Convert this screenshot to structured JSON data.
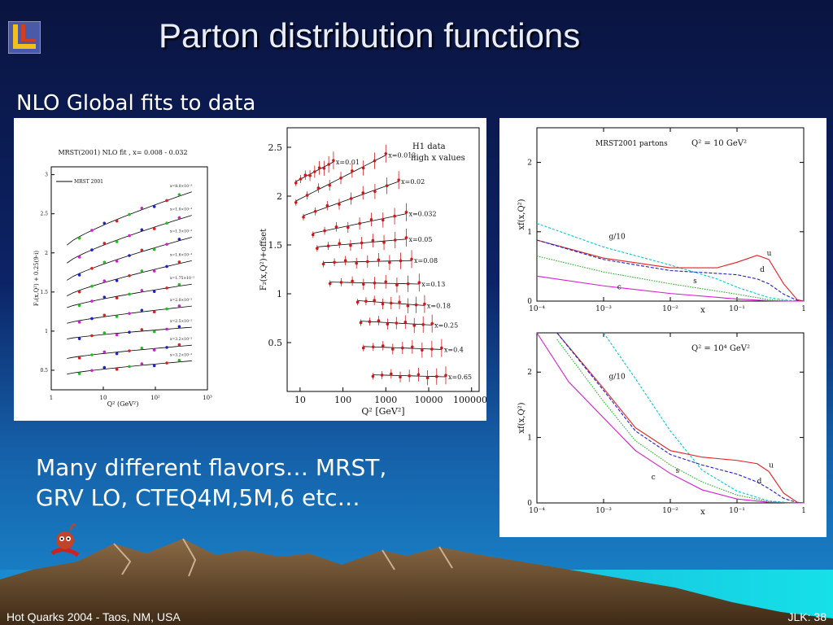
{
  "slide": {
    "title": "Parton distribution functions",
    "subtitle": "NLO Global fits to data",
    "body_lines": [
      "Many different flavors… MRST,",
      "GRV LO, CTEQ4M,5M,6 etc…"
    ],
    "footer_left": "Hot Quarks 2004 - Taos, NM, USA",
    "footer_right": "JLK: 38",
    "colors": {
      "title": "#e8ecff",
      "background_top": "#0a1440",
      "background_bottom": "#1a8ad0"
    },
    "icons": {
      "logo": "lab-logo-icon",
      "mascot": "mascot-icon"
    }
  },
  "chart_data": [
    {
      "type": "scatter",
      "title": "MRST(2001) NLO fit , x= 0.008 - 0.032",
      "xlabel": "Q² (GeV²)",
      "ylabel": "F₂(x,Q²) + 0.25(9-i)",
      "xscale": "log",
      "xlim": [
        1,
        1000
      ],
      "ylim": [
        0.25,
        3.1
      ],
      "x_ticks": [
        "1",
        "10",
        "10²",
        "10³"
      ],
      "y_ticks": [
        "0.5",
        "1",
        "1.5",
        "2",
        "2.5",
        "3"
      ],
      "legend": "MRST 2001",
      "series": [
        {
          "name": "x=8.0×10⁻³",
          "offset_y": [
            2.1,
            2.78
          ]
        },
        {
          "name": "x=1.0×10⁻²",
          "offset_y": [
            1.87,
            2.48
          ]
        },
        {
          "name": "x=1.3×10⁻²",
          "offset_y": [
            1.65,
            2.2
          ]
        },
        {
          "name": "x=1.6×10⁻²",
          "offset_y": [
            1.45,
            1.9
          ]
        },
        {
          "name": "x=1.75×10⁻²",
          "offset_y": [
            1.3,
            1.6
          ]
        },
        {
          "name": "x=2.0×10⁻²",
          "offset_y": [
            1.1,
            1.32
          ]
        },
        {
          "name": "x=2.5×10⁻²",
          "offset_y": [
            0.9,
            1.05
          ]
        },
        {
          "name": "x=3.2×10⁻²",
          "offset_y": [
            0.65,
            0.82
          ]
        },
        {
          "name": "x=3.2×10⁻²",
          "offset_y": [
            0.45,
            0.62
          ]
        }
      ]
    },
    {
      "type": "scatter",
      "title": "H1 data",
      "subtitle": "high x values",
      "xlabel": "Q² [GeV²]",
      "ylabel": "F₂(x,Q²)+offset",
      "xscale": "log",
      "xlim": [
        5,
        150000
      ],
      "ylim": [
        0,
        2.7
      ],
      "x_ticks": [
        "10",
        "100",
        "1000",
        "10000",
        "100000."
      ],
      "y_ticks": [
        "0.5",
        "1",
        "1.5",
        "2",
        "2.5"
      ],
      "series": [
        {
          "name": "x=0.01",
          "q2_range": [
            8,
            60
          ],
          "y_range": [
            2.15,
            2.35
          ]
        },
        {
          "name": "x=0.013",
          "q2_range": [
            8,
            1000
          ],
          "y_range": [
            1.95,
            2.42
          ]
        },
        {
          "name": "x=0.02",
          "q2_range": [
            12,
            2000
          ],
          "y_range": [
            1.8,
            2.15
          ]
        },
        {
          "name": "x=0.032",
          "q2_range": [
            20,
            3000
          ],
          "y_range": [
            1.62,
            1.82
          ]
        },
        {
          "name": "x=0.05",
          "q2_range": [
            25,
            3000
          ],
          "y_range": [
            1.48,
            1.56
          ]
        },
        {
          "name": "x=0.08",
          "q2_range": [
            35,
            4000
          ],
          "y_range": [
            1.32,
            1.34
          ]
        },
        {
          "name": "x=0.13",
          "q2_range": [
            50,
            6000
          ],
          "y_range": [
            1.12,
            1.1
          ]
        },
        {
          "name": "x=0.18",
          "q2_range": [
            220,
            8000
          ],
          "y_range": [
            0.93,
            0.88
          ]
        },
        {
          "name": "x=0.25",
          "q2_range": [
            260,
            12000
          ],
          "y_range": [
            0.72,
            0.68
          ]
        },
        {
          "name": "x=0.4",
          "q2_range": [
            300,
            20000
          ],
          "y_range": [
            0.46,
            0.43
          ]
        },
        {
          "name": "x=0.65",
          "q2_range": [
            500,
            25000
          ],
          "y_range": [
            0.17,
            0.15
          ]
        }
      ]
    },
    {
      "type": "line",
      "title": "MRST2001 partons",
      "annotation": "Q² = 10 GeV²",
      "xlabel": "x",
      "ylabel": "xf(x,Q²)",
      "xscale": "log",
      "xlim": [
        0.0001,
        1
      ],
      "ylim": [
        0,
        2.5
      ],
      "x_ticks": [
        "10⁻⁴",
        "10⁻³",
        "10⁻²",
        "10⁻¹",
        "1"
      ],
      "y_ticks": [
        "0",
        "1",
        "2"
      ],
      "series": [
        {
          "name": "g/10",
          "color": "#00c8d8",
          "x": [
            0.0001,
            0.001,
            0.01,
            0.05,
            0.1,
            0.3,
            0.6,
            1
          ],
          "y": [
            1.12,
            0.78,
            0.52,
            0.32,
            0.2,
            0.05,
            0.01,
            0
          ]
        },
        {
          "name": "u",
          "color": "#e02020",
          "x": [
            0.0001,
            0.001,
            0.01,
            0.05,
            0.1,
            0.2,
            0.3,
            0.5,
            0.8,
            1
          ],
          "y": [
            0.88,
            0.62,
            0.48,
            0.48,
            0.56,
            0.66,
            0.6,
            0.25,
            0.02,
            0
          ]
        },
        {
          "name": "d",
          "color": "#2020c8",
          "x": [
            0.0001,
            0.001,
            0.01,
            0.05,
            0.1,
            0.2,
            0.3,
            0.5,
            0.8,
            1
          ],
          "y": [
            0.88,
            0.6,
            0.44,
            0.4,
            0.38,
            0.32,
            0.25,
            0.1,
            0.01,
            0
          ]
        },
        {
          "name": "s",
          "color": "#20b020",
          "x": [
            0.0001,
            0.001,
            0.01,
            0.1,
            0.3,
            0.6,
            1
          ],
          "y": [
            0.65,
            0.42,
            0.25,
            0.1,
            0.02,
            0.0,
            0
          ]
        },
        {
          "name": "c",
          "color": "#d020d0",
          "x": [
            0.0001,
            0.001,
            0.01,
            0.1,
            0.3,
            0.6,
            1
          ],
          "y": [
            0.36,
            0.22,
            0.11,
            0.03,
            0.005,
            0,
            0
          ]
        }
      ]
    },
    {
      "type": "line",
      "annotation": "Q² = 10⁴ GeV²",
      "xlabel": "x",
      "ylabel": "xf(x,Q²)",
      "xscale": "log",
      "xlim": [
        0.0001,
        1
      ],
      "ylim": [
        0,
        2.6
      ],
      "x_ticks": [
        "10⁻⁴",
        "10⁻³",
        "10⁻²",
        "10⁻¹",
        "1"
      ],
      "y_ticks": [
        "0",
        "1",
        "2"
      ],
      "series": [
        {
          "name": "g/10",
          "color": "#00c8d8",
          "x": [
            0.001,
            0.003,
            0.01,
            0.03,
            0.1,
            0.3,
            0.6,
            1
          ],
          "y": [
            2.6,
            1.9,
            1.1,
            0.5,
            0.18,
            0.03,
            0.005,
            0
          ]
        },
        {
          "name": "u",
          "color": "#e02020",
          "x": [
            0.0002,
            0.001,
            0.003,
            0.01,
            0.03,
            0.1,
            0.2,
            0.3,
            0.5,
            0.8,
            1
          ],
          "y": [
            2.6,
            1.75,
            1.15,
            0.8,
            0.7,
            0.65,
            0.6,
            0.48,
            0.15,
            0.01,
            0
          ]
        },
        {
          "name": "d",
          "color": "#2020c8",
          "x": [
            0.0002,
            0.001,
            0.003,
            0.01,
            0.03,
            0.1,
            0.2,
            0.3,
            0.5,
            0.8,
            1
          ],
          "y": [
            2.6,
            1.72,
            1.1,
            0.74,
            0.58,
            0.44,
            0.32,
            0.22,
            0.07,
            0.005,
            0
          ]
        },
        {
          "name": "s",
          "color": "#20b020",
          "x": [
            0.0002,
            0.001,
            0.003,
            0.01,
            0.03,
            0.1,
            0.3,
            0.6,
            1
          ],
          "y": [
            2.5,
            1.55,
            0.95,
            0.58,
            0.32,
            0.12,
            0.02,
            0,
            0
          ]
        },
        {
          "name": "c",
          "color": "#d020d0",
          "x": [
            0.0001,
            0.0003,
            0.001,
            0.003,
            0.01,
            0.03,
            0.1,
            0.3,
            1
          ],
          "y": [
            2.6,
            1.85,
            1.3,
            0.8,
            0.45,
            0.2,
            0.06,
            0.01,
            0
          ]
        }
      ]
    }
  ]
}
